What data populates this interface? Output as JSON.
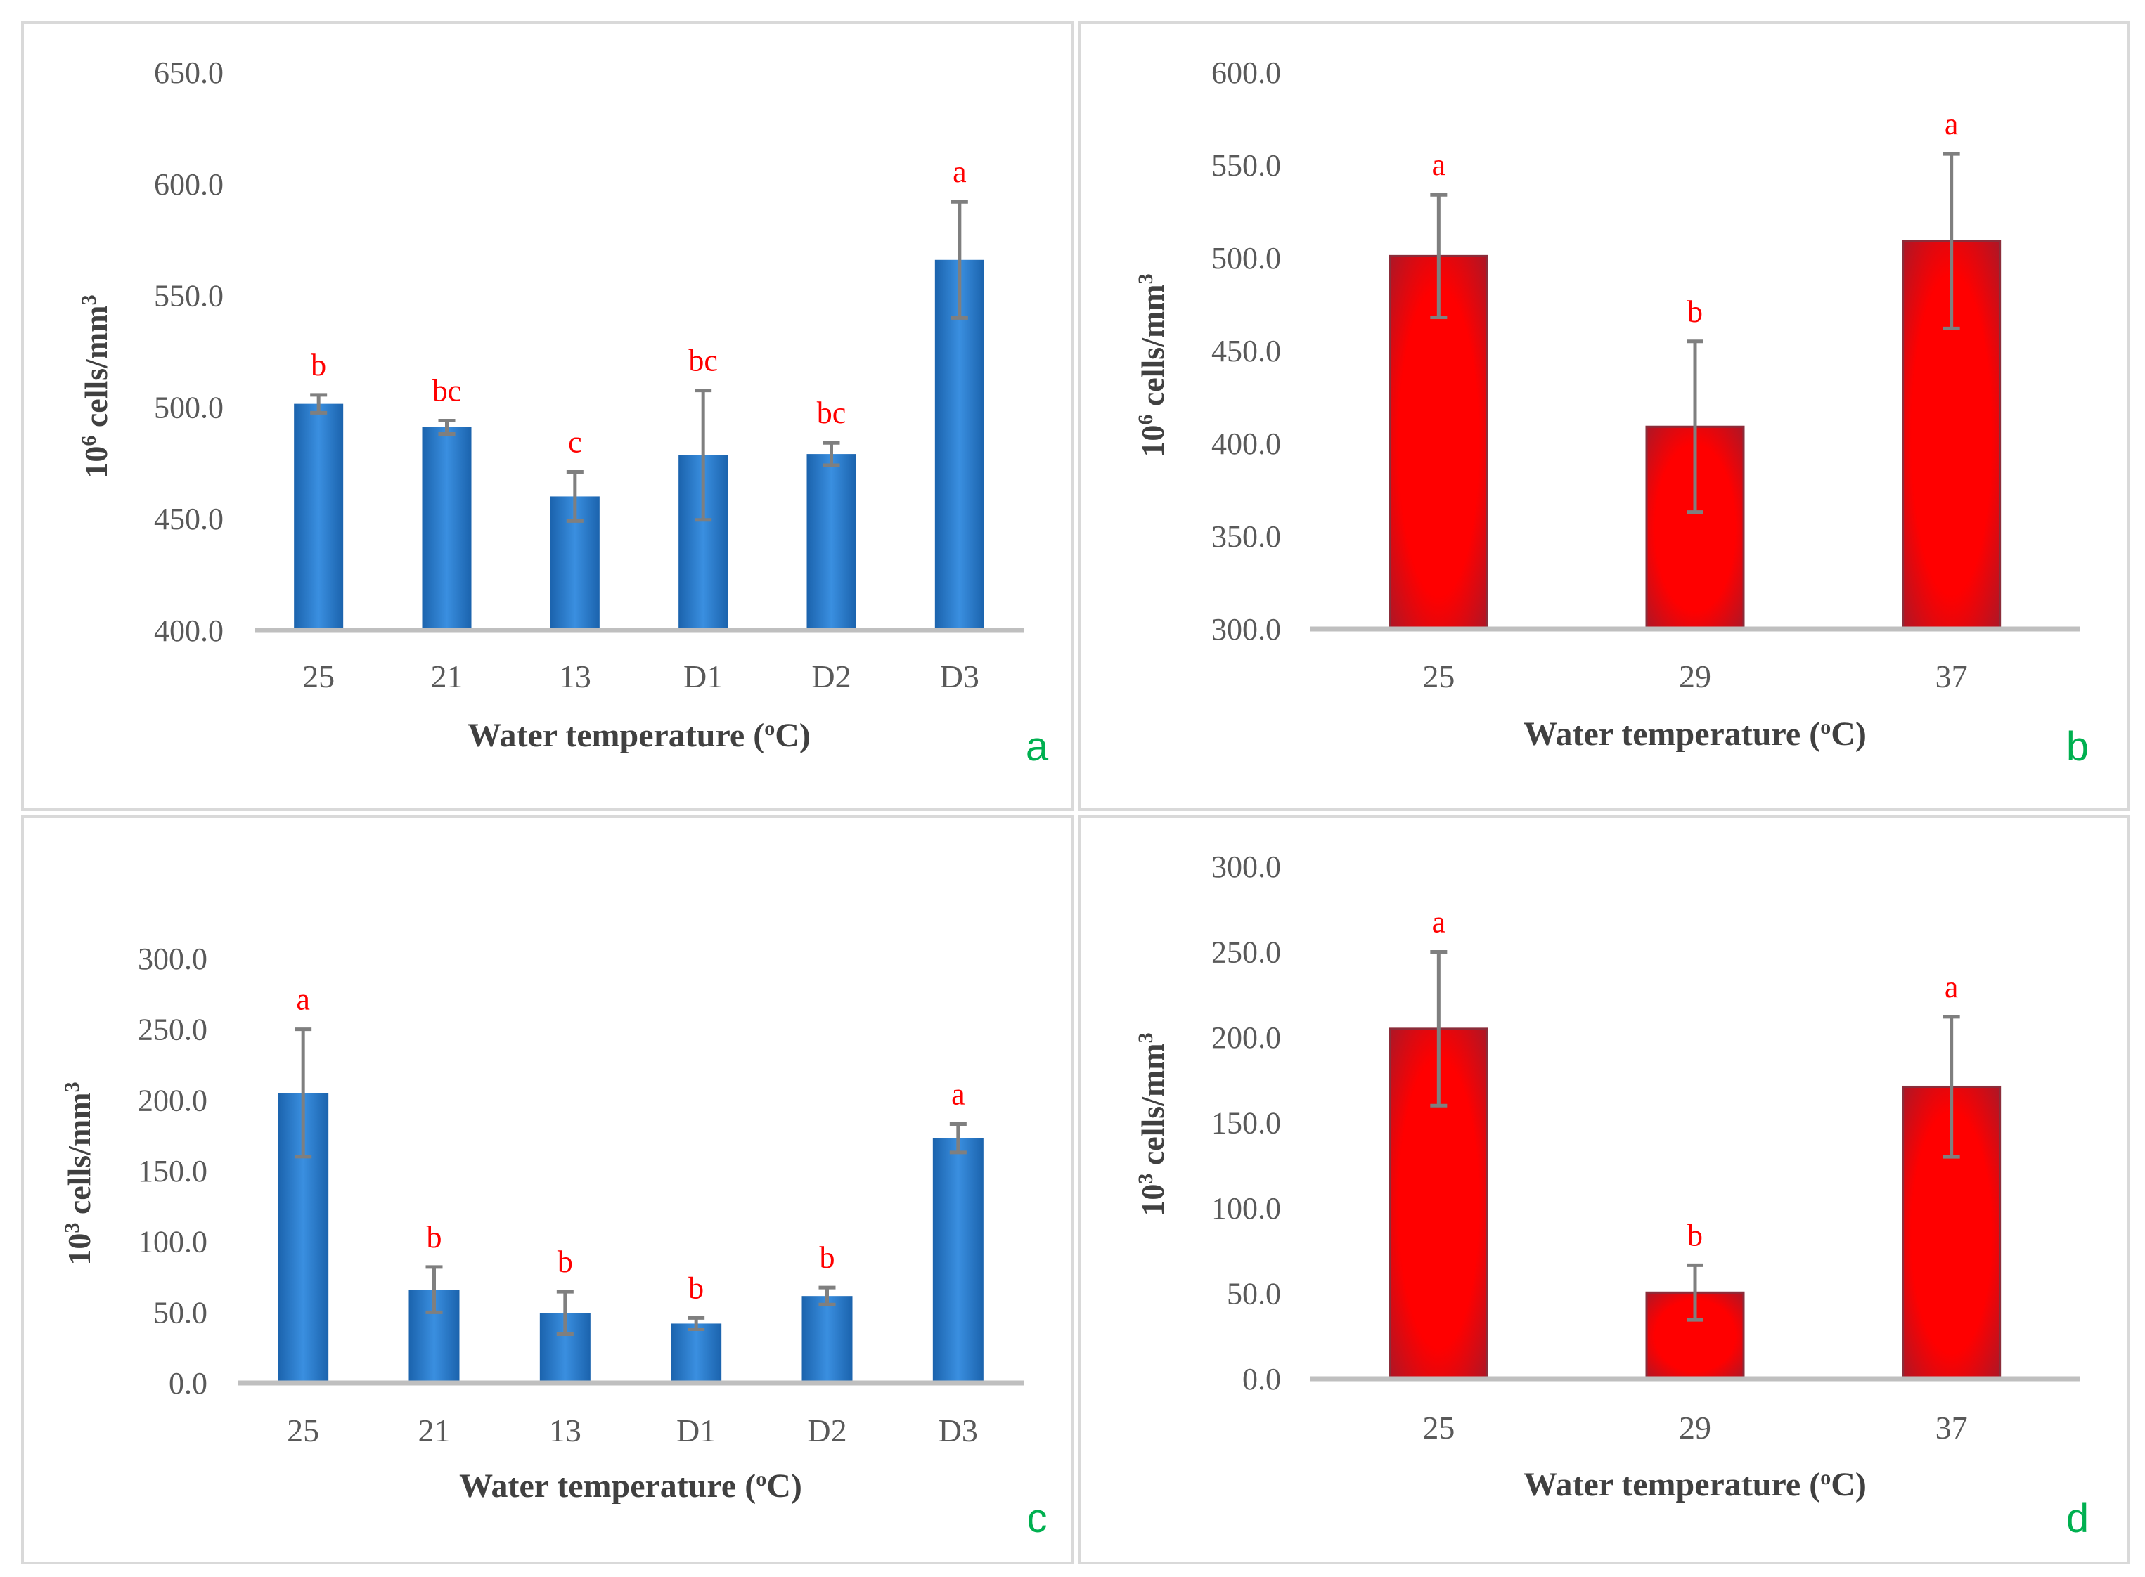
{
  "figure": {
    "colors": {
      "blue": "#0d6ebd",
      "red": "#ff0000",
      "sig": "#ff0000",
      "panel_letter": "#00b050"
    }
  },
  "chart_data": [
    {
      "id": "a",
      "type": "bar",
      "panel_letter": "a",
      "style": "blue",
      "xlabel": "Water temperature (",
      "xlabel_sup": "o",
      "xlabel_tail": "C)",
      "ylabel": "10",
      "ylabel_sup": "6",
      "ylabel_tail": " cells/mm",
      "ylabel_sup2": "3",
      "ylim": [
        400,
        650
      ],
      "yticks": [
        "400.0",
        "450.0",
        "500.0",
        "550.0",
        "600.0",
        "650.0"
      ],
      "categories": [
        "25",
        "21",
        "13",
        "D1",
        "D2",
        "D3"
      ],
      "values": [
        501.5,
        491.0,
        460.0,
        478.5,
        479.0,
        566.0
      ],
      "err": [
        4,
        3,
        11,
        29,
        5,
        26
      ],
      "sig": [
        "b",
        "bc",
        "c",
        "bc",
        "bc",
        "a"
      ]
    },
    {
      "id": "b",
      "type": "bar",
      "panel_letter": "b",
      "style": "red",
      "xlabel": "Water temperature (",
      "xlabel_sup": "o",
      "xlabel_tail": "C)",
      "ylabel": "10",
      "ylabel_sup": "6",
      "ylabel_tail": " cells/mm",
      "ylabel_sup2": "3",
      "ylim": [
        300,
        600
      ],
      "yticks": [
        "300.0",
        "350.0",
        "400.0",
        "450.0",
        "500.0",
        "550.0",
        "600.0"
      ],
      "categories": [
        "25",
        "29",
        "37"
      ],
      "values": [
        501.0,
        409.0,
        509.0
      ],
      "err": [
        33,
        46,
        47
      ],
      "sig": [
        "a",
        "b",
        "a"
      ]
    },
    {
      "id": "c",
      "type": "bar",
      "panel_letter": "c",
      "style": "blue",
      "xlabel": "Water temperature (",
      "xlabel_sup": "o",
      "xlabel_tail": "C)",
      "ylabel": "10",
      "ylabel_sup": "3",
      "ylabel_tail": " cells/mm",
      "ylabel_sup2": "3",
      "ylim": [
        0,
        300
      ],
      "yticks": [
        "0.0",
        "50.0",
        "100.0",
        "150.0",
        "200.0",
        "250.0",
        "300.0"
      ],
      "categories": [
        "25",
        "21",
        "13",
        "D1",
        "D2",
        "D3"
      ],
      "values": [
        205.0,
        66.0,
        49.5,
        42.0,
        61.5,
        173.0
      ],
      "err": [
        45,
        16,
        15,
        4,
        6,
        10
      ],
      "sig": [
        "a",
        "b",
        "b",
        "b",
        "b",
        "a"
      ]
    },
    {
      "id": "d",
      "type": "bar",
      "panel_letter": "d",
      "style": "red",
      "xlabel": "Water temperature (",
      "xlabel_sup": "o",
      "xlabel_tail": "C)",
      "ylabel": "10",
      "ylabel_sup": "3",
      "ylabel_tail": " cells/mm",
      "ylabel_sup2": "3",
      "ylim": [
        0,
        300
      ],
      "yticks": [
        "0.0",
        "50.0",
        "100.0",
        "150.0",
        "200.0",
        "250.0",
        "300.0"
      ],
      "categories": [
        "25",
        "29",
        "37"
      ],
      "values": [
        205.0,
        50.5,
        171.0
      ],
      "err": [
        45,
        16,
        41
      ],
      "sig": [
        "a",
        "b",
        "a"
      ]
    }
  ]
}
